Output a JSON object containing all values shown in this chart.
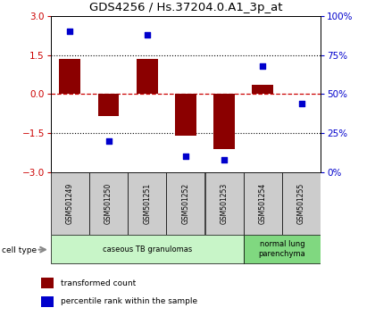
{
  "title": "GDS4256 / Hs.37204.0.A1_3p_at",
  "samples": [
    "GSM501249",
    "GSM501250",
    "GSM501251",
    "GSM501252",
    "GSM501253",
    "GSM501254",
    "GSM501255"
  ],
  "transformed_count": [
    1.35,
    -0.85,
    1.35,
    -1.6,
    -2.1,
    0.35,
    0.02
  ],
  "percentile_rank": [
    90,
    20,
    88,
    10,
    8,
    68,
    44
  ],
  "ylim": [
    -3,
    3
  ],
  "yticks_left": [
    -3,
    -1.5,
    0,
    1.5,
    3
  ],
  "yticks_right": [
    0,
    25,
    50,
    75,
    100
  ],
  "cell_type_groups": [
    {
      "label": "caseous TB granulomas",
      "samples": [
        0,
        1,
        2,
        3,
        4
      ],
      "color": "#c8f5c8"
    },
    {
      "label": "normal lung\nparenchyma",
      "samples": [
        5,
        6
      ],
      "color": "#80d880"
    }
  ],
  "bar_color": "#8B0000",
  "dot_color": "#0000CC",
  "hline0_color": "#CC0000",
  "hline15_color": "black",
  "background_color": "#ffffff",
  "label_box_color": "#cccccc",
  "legend_items": [
    {
      "label": "transformed count",
      "color": "#8B0000"
    },
    {
      "label": "percentile rank within the sample",
      "color": "#0000CC"
    }
  ]
}
